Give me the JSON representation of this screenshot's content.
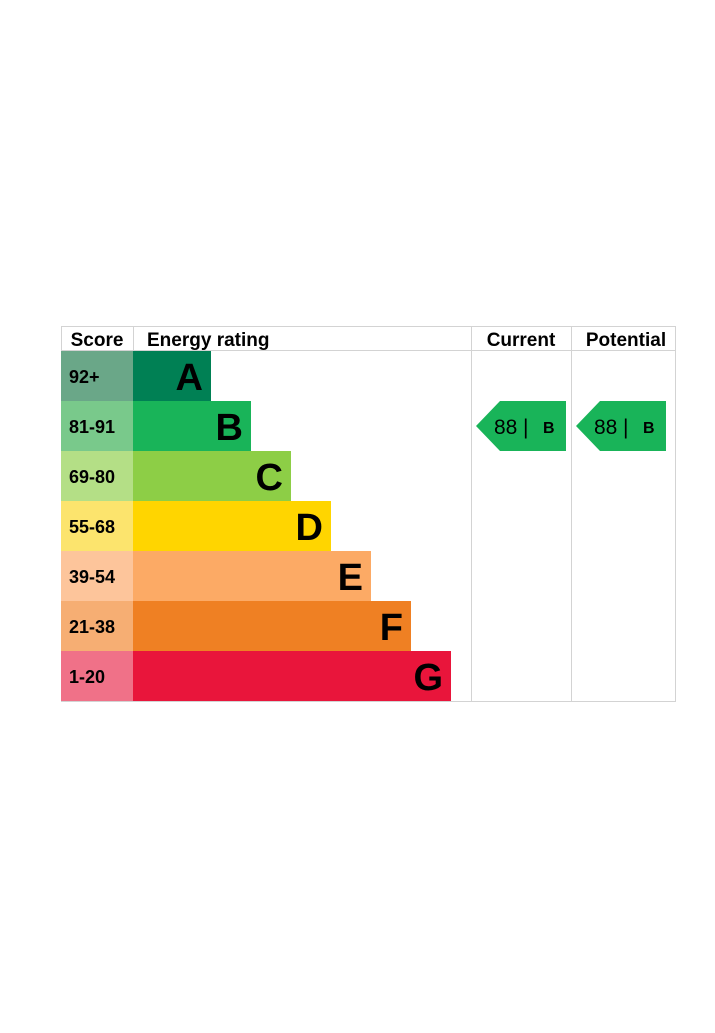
{
  "chart_data": {
    "type": "table",
    "headers": {
      "score": "Score",
      "energy_rating": "Energy rating",
      "current": "Current",
      "potential": "Potential"
    },
    "bands": [
      {
        "range": "92+",
        "letter": "A",
        "color": "#008054",
        "score_color": "#6aa788"
      },
      {
        "range": "81-91",
        "letter": "B",
        "color": "#19b459",
        "score_color": "#79c98b"
      },
      {
        "range": "69-80",
        "letter": "C",
        "color": "#8dce46",
        "score_color": "#b4df86"
      },
      {
        "range": "55-68",
        "letter": "D",
        "color": "#ffd500",
        "score_color": "#fce46d"
      },
      {
        "range": "39-54",
        "letter": "E",
        "color": "#fcaa65",
        "score_color": "#fdc59b"
      },
      {
        "range": "21-38",
        "letter": "F",
        "color": "#ef8023",
        "score_color": "#f6ae73"
      },
      {
        "range": "1-20",
        "letter": "G",
        "color": "#e9153b",
        "score_color": "#f07188"
      }
    ],
    "current": {
      "score": 88,
      "letter": "B",
      "band": "B",
      "color": "#19b459"
    },
    "potential": {
      "score": 88,
      "letter": "B",
      "band": "B",
      "color": "#19b459"
    }
  }
}
